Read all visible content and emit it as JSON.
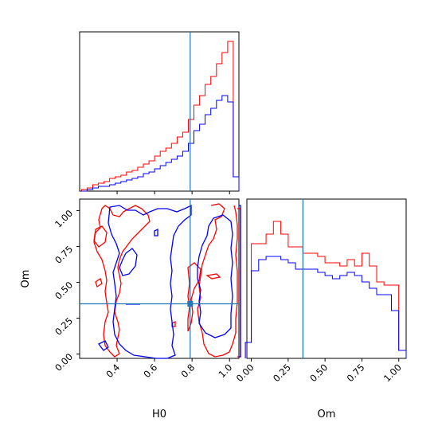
{
  "chart_data": {
    "type": "corner",
    "parameters": [
      "H0",
      "Om"
    ],
    "truth": {
      "H0": 0.79,
      "Om": 0.35
    },
    "colors": {
      "red_series": "#ff0000",
      "blue_series": "#0000ff",
      "truth": "#1f77b4",
      "axes": "#000000"
    },
    "panels": [
      {
        "id": "h0-hist",
        "type": "histogram",
        "xlim": [
          0.2,
          1.05
        ],
        "ylim": [
          0,
          100
        ],
        "bin_edges": [
          0.21,
          0.24,
          0.27,
          0.3,
          0.33,
          0.36,
          0.39,
          0.42,
          0.45,
          0.48,
          0.51,
          0.54,
          0.57,
          0.6,
          0.63,
          0.66,
          0.69,
          0.72,
          0.75,
          0.78,
          0.81,
          0.84,
          0.87,
          0.9,
          0.93,
          0.96,
          0.99,
          1.02,
          1.05
        ],
        "series": [
          {
            "color": "red",
            "values": [
              1,
              2,
              4,
              5,
              6,
              8,
              9,
              10,
              12,
              13,
              15,
              17,
              19,
              22,
              25,
              27,
              30,
              34,
              37,
              45,
              54,
              60,
              67,
              72,
              80,
              87,
              94,
              9
            ]
          },
          {
            "color": "blue",
            "values": [
              0,
              1,
              2,
              3,
              3,
              4,
              5,
              6,
              7,
              8,
              9,
              11,
              12,
              14,
              16,
              18,
              20,
              22,
              25,
              30,
              38,
              42,
              48,
              52,
              57,
              60,
              56,
              9
            ]
          }
        ]
      },
      {
        "id": "om-hist",
        "type": "histogram",
        "xlim": [
          -0.03,
          1.05
        ],
        "ylim": [
          0,
          1.0
        ],
        "bin_edges": [
          -0.04,
          0.0,
          0.05,
          0.1,
          0.15,
          0.2,
          0.25,
          0.3,
          0.35,
          0.4,
          0.45,
          0.5,
          0.55,
          0.6,
          0.65,
          0.7,
          0.75,
          0.8,
          0.85,
          0.9,
          0.95,
          1.0,
          1.05
        ],
        "series": [
          {
            "color": "red",
            "values": [
              0.1,
              0.72,
              0.72,
              0.78,
              0.86,
              0.78,
              0.7,
              0.7,
              0.66,
              0.66,
              0.64,
              0.6,
              0.6,
              0.58,
              0.62,
              0.58,
              0.66,
              0.58,
              0.48,
              0.46,
              0.46,
              0.05
            ]
          },
          {
            "color": "blue",
            "values": [
              0.1,
              0.55,
              0.62,
              0.64,
              0.64,
              0.62,
              0.6,
              0.56,
              0.56,
              0.56,
              0.54,
              0.52,
              0.5,
              0.52,
              0.54,
              0.52,
              0.48,
              0.44,
              0.4,
              0.4,
              0.3,
              0.05
            ]
          }
        ]
      },
      {
        "id": "joint",
        "type": "contour",
        "xlim": [
          0.2,
          1.05
        ],
        "ylim": [
          -0.03,
          1.08
        ],
        "xlabel": "H0",
        "ylabel": "Om",
        "xticks": [
          0.4,
          0.6,
          0.8,
          1.0
        ],
        "xtick_labels": [
          "0.4",
          "0.6",
          "0.8",
          "1.0"
        ],
        "yticks": [
          0.0,
          0.25,
          0.5,
          0.75,
          1.0
        ],
        "ytick_labels": [
          "0.00",
          "0.25",
          "0.50",
          "0.75",
          "1.00"
        ]
      }
    ],
    "om_hist_xticks": [
      0.0,
      0.25,
      0.5,
      0.75,
      1.0
    ],
    "om_hist_xtick_labels": [
      "0.00",
      "0.25",
      "0.50",
      "0.75",
      "1.00"
    ],
    "om_hist_xlabel": "Om"
  }
}
